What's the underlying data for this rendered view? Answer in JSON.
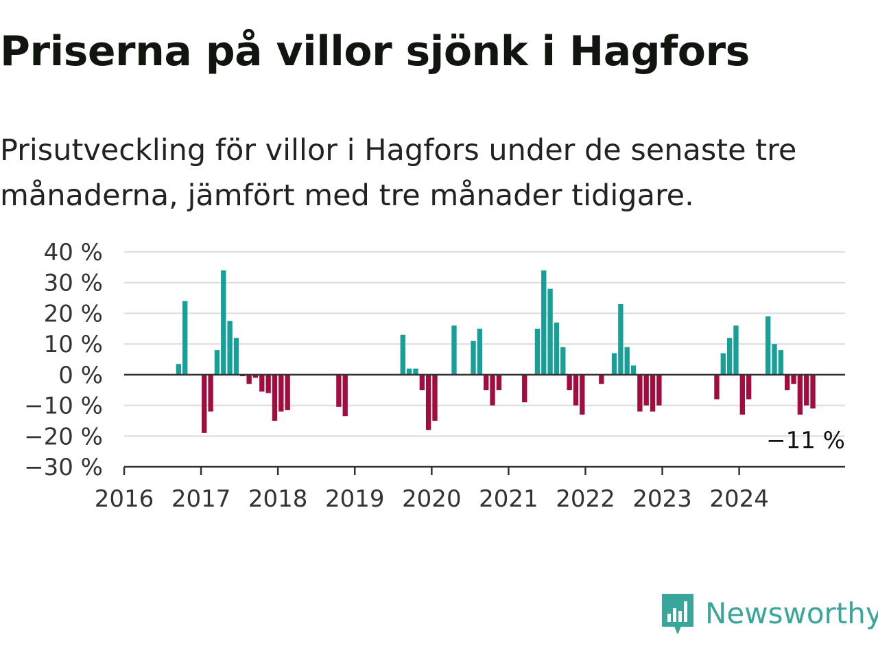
{
  "title": "Priserna på villor sjönk i Hagfors",
  "subtitle": "Prisutveckling för villor i Hagfors under de senaste tre månaderna, jämfört med tre månader tidigare.",
  "brand": {
    "name": "Newsworthy",
    "icon": "newsworthy-chart-bubble-icon",
    "color": "#3aa59a"
  },
  "chart_data": {
    "type": "bar",
    "title": "",
    "xlabel": "",
    "ylabel": "",
    "unit": "%",
    "ylim": [
      -30,
      40
    ],
    "yticks": [
      40,
      30,
      20,
      10,
      0,
      -10,
      -20,
      -30
    ],
    "ytick_labels": [
      "40 %",
      "30 %",
      "20 %",
      "10 %",
      "0 %",
      "−10 %",
      "−20 %",
      "−30 %"
    ],
    "xticks": [
      "2016",
      "2017",
      "2018",
      "2019",
      "2020",
      "2021",
      "2022",
      "2023",
      "2024"
    ],
    "x_start": "2016-01",
    "grid": true,
    "legend": "none",
    "colors": {
      "positive": "#17a097",
      "negative": "#a10d3e"
    },
    "end_label": "−11 %",
    "x": [
      "2016-09",
      "2016-10",
      "2017-01",
      "2017-02",
      "2017-03",
      "2017-04",
      "2017-05",
      "2017-06",
      "2017-07",
      "2017-08",
      "2017-09",
      "2017-10",
      "2017-11",
      "2017-12",
      "2018-01",
      "2018-02",
      "2018-10",
      "2018-11",
      "2019-08",
      "2019-09",
      "2019-10",
      "2019-11",
      "2019-12",
      "2020-01",
      "2020-04",
      "2020-07",
      "2020-08",
      "2020-09",
      "2020-10",
      "2020-11",
      "2021-03",
      "2021-05",
      "2021-06",
      "2021-07",
      "2021-08",
      "2021-09",
      "2021-10",
      "2021-11",
      "2021-12",
      "2022-03",
      "2022-05",
      "2022-06",
      "2022-07",
      "2022-08",
      "2022-09",
      "2022-10",
      "2022-11",
      "2022-12",
      "2023-09",
      "2023-10",
      "2023-11",
      "2023-12",
      "2024-01",
      "2024-02",
      "2024-05",
      "2024-06",
      "2024-07",
      "2024-08",
      "2024-09",
      "2024-10",
      "2024-11",
      "2024-12"
    ],
    "values": [
      3.5,
      24,
      -19,
      -12,
      8,
      34,
      17.5,
      12,
      -0.5,
      -3,
      -1,
      -5.5,
      -6,
      -15,
      -12,
      -11.5,
      -10.5,
      -13.5,
      13,
      2,
      2,
      -5,
      -18,
      -15,
      16,
      11,
      15,
      -5,
      -10,
      -5,
      -9,
      15,
      34,
      28,
      17,
      9,
      -5,
      -10,
      -13,
      -3,
      7,
      23,
      9,
      3,
      -12,
      -10,
      -12,
      -10,
      -8,
      7,
      12,
      16,
      -13,
      -8,
      19,
      10,
      8,
      -5,
      -3,
      -13,
      -10,
      -11
    ]
  }
}
